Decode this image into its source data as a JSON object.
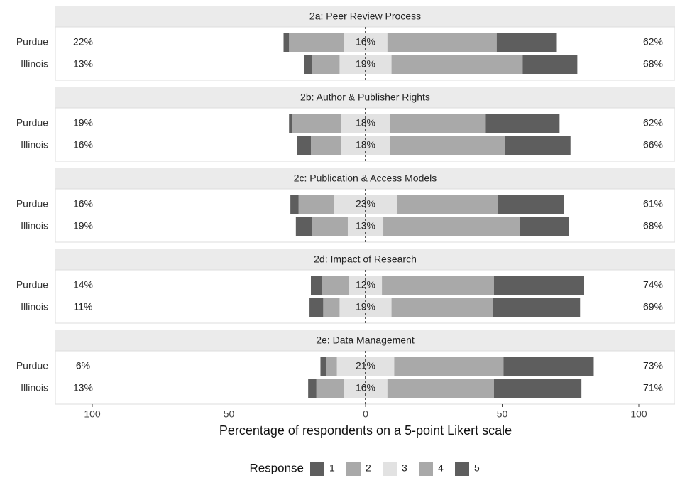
{
  "chart_data": {
    "type": "diverging_bar",
    "xlabel": "Percentage of respondents on a 5-point Likert scale",
    "legend_title": "Response",
    "panels": [
      {
        "title": "2a: Peer Review Process"
      },
      {
        "title": "2b: Author & Publisher Rights"
      },
      {
        "title": "2c: Publication & Access Models"
      },
      {
        "title": "2d: Impact of Research"
      },
      {
        "title": "2e: Data Management"
      }
    ],
    "categories": [
      "Purdue",
      "Illinois",
      "Purdue",
      "Illinois",
      "Purdue",
      "Illinois",
      "Purdue",
      "Illinois",
      "Purdue",
      "Illinois"
    ],
    "series": [
      {
        "name": "1",
        "color": "#5e5e5e",
        "values": [
          2,
          3,
          1,
          5,
          3,
          6,
          4,
          5,
          2,
          3
        ]
      },
      {
        "name": "2",
        "color": "#a9a9a9",
        "values": [
          20,
          10,
          18,
          11,
          13,
          13,
          10,
          6,
          4,
          10
        ]
      },
      {
        "name": "3",
        "color": "#e2e2e2",
        "values": [
          16,
          19,
          18,
          18,
          23,
          13,
          12,
          19,
          21,
          16
        ],
        "value_labels": [
          "16%",
          "19%",
          "18%",
          "18%",
          "23%",
          "13%",
          "12%",
          "19%",
          "21%",
          "16%"
        ]
      },
      {
        "name": "4",
        "color": "#a9a9a9",
        "values": [
          40,
          48,
          35,
          42,
          37,
          50,
          41,
          37,
          40,
          39
        ]
      },
      {
        "name": "5",
        "color": "#5e5e5e",
        "values": [
          22,
          20,
          27,
          24,
          24,
          18,
          33,
          32,
          33,
          32
        ]
      }
    ],
    "low_labels": [
      "22%",
      "13%",
      "19%",
      "16%",
      "16%",
      "19%",
      "14%",
      "11%",
      "6%",
      "13%"
    ],
    "high_labels": [
      "62%",
      "68%",
      "62%",
      "66%",
      "61%",
      "68%",
      "74%",
      "69%",
      "73%",
      "71%"
    ],
    "xlim": [
      -100,
      100
    ],
    "xticks": [
      {
        "value": -100,
        "label": "100"
      },
      {
        "value": -50,
        "label": "50"
      },
      0,
      50,
      100
    ]
  }
}
